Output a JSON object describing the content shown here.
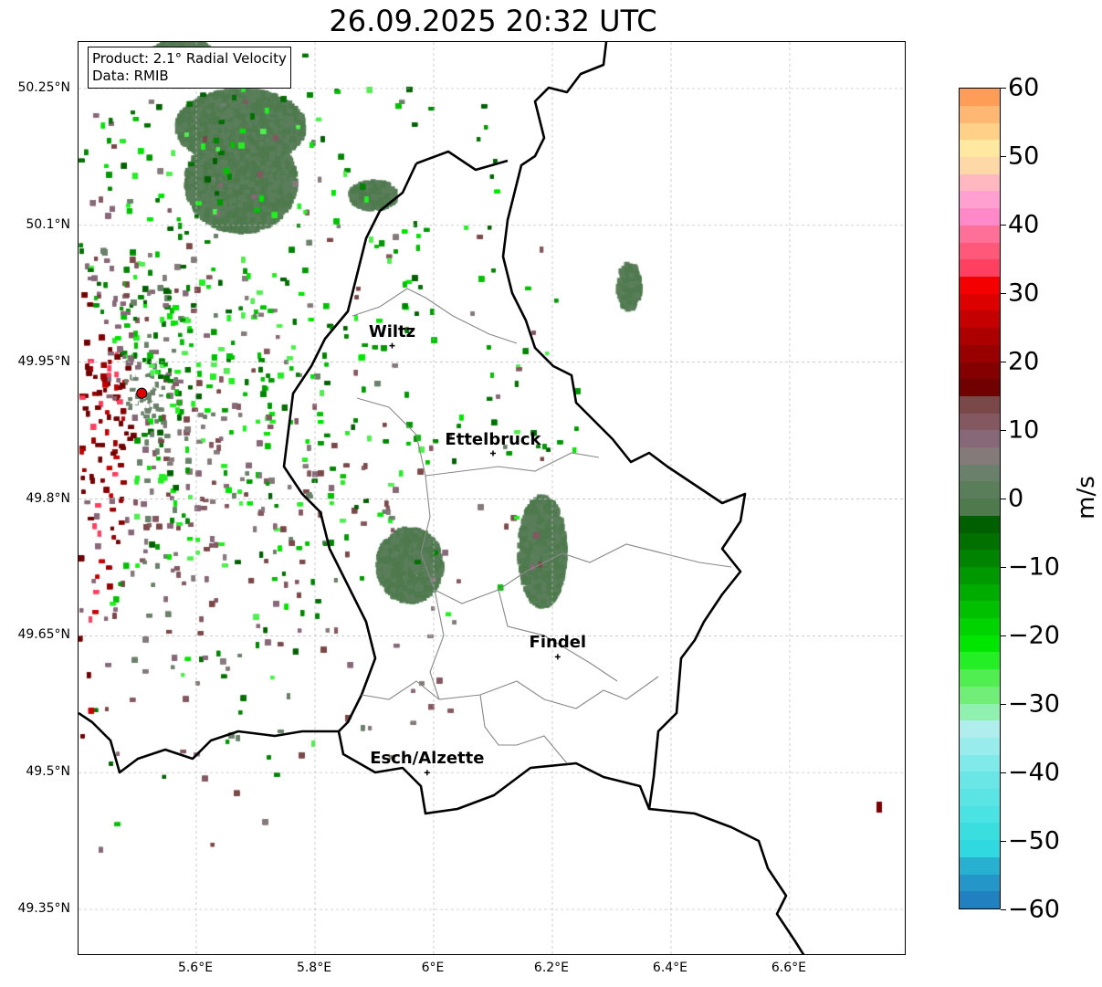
{
  "title": "26.09.2025 20:32 UTC",
  "legend": {
    "product": "Product: 2.1° Radial Velocity",
    "source": "Data: RMIB"
  },
  "map": {
    "lon_range": [
      5.4015,
      6.797
    ],
    "lat_range": [
      49.299,
      50.301
    ],
    "lat_ticks": [
      {
        "v": 50.25,
        "label": "50.25°N"
      },
      {
        "v": 50.1,
        "label": "50.1°N"
      },
      {
        "v": 49.95,
        "label": "49.95°N"
      },
      {
        "v": 49.8,
        "label": "49.8°N"
      },
      {
        "v": 49.65,
        "label": "49.65°N"
      },
      {
        "v": 49.5,
        "label": "49.5°N"
      },
      {
        "v": 49.35,
        "label": "49.35°N"
      }
    ],
    "lon_ticks": [
      {
        "v": 5.6,
        "label": "5.6°E"
      },
      {
        "v": 5.8,
        "label": "5.8°E"
      },
      {
        "v": 6.0,
        "label": "6°E"
      },
      {
        "v": 6.2,
        "label": "6.2°E"
      },
      {
        "v": 6.4,
        "label": "6.4°E"
      },
      {
        "v": 6.6,
        "label": "6.6°E"
      }
    ],
    "cities": [
      {
        "name": "Wiltz",
        "lon": 5.93,
        "lat": 49.968
      },
      {
        "name": "Ettelbruck",
        "lon": 6.1,
        "lat": 49.85
      },
      {
        "name": "Findel",
        "lon": 6.209,
        "lat": 49.627
      },
      {
        "name": "Esch/Alzette",
        "lon": 5.989,
        "lat": 49.5
      }
    ],
    "radar_site": {
      "lon": 5.508,
      "lat": 49.916,
      "color": "#e00000"
    }
  },
  "colorbar": {
    "label": "m/s",
    "min": -60,
    "max": 60,
    "ticks": [
      {
        "v": 60,
        "label": "60"
      },
      {
        "v": 50,
        "label": "50"
      },
      {
        "v": 40,
        "label": "40"
      },
      {
        "v": 30,
        "label": "30"
      },
      {
        "v": 20,
        "label": "20"
      },
      {
        "v": 10,
        "label": "10"
      },
      {
        "v": 0,
        "label": "0"
      },
      {
        "v": -10,
        "label": "−10"
      },
      {
        "v": -20,
        "label": "−20"
      },
      {
        "v": -30,
        "label": "−30"
      },
      {
        "v": -40,
        "label": "−40"
      },
      {
        "v": -50,
        "label": "−50"
      },
      {
        "v": -60,
        "label": "−60"
      }
    ],
    "colors": [
      "#2080c0",
      "#2596c8",
      "#27b0d0",
      "#30d8e0",
      "#3adede",
      "#4ae2e2",
      "#5ae4e4",
      "#6ae6e6",
      "#80eaea",
      "#98ecec",
      "#b0eeee",
      "#90f0b0",
      "#70ee78",
      "#50ee50",
      "#24ee24",
      "#00e600",
      "#00d400",
      "#00c000",
      "#00ac00",
      "#009800",
      "#008400",
      "#007000",
      "#006000",
      "#4e7a4e",
      "#5a7e5a",
      "#6a806a",
      "#847a7a",
      "#866878",
      "#845860",
      "#7a4848",
      "#700000",
      "#840000",
      "#980000",
      "#ac0000",
      "#c40000",
      "#dc0000",
      "#f40000",
      "#ff4060",
      "#ff5878",
      "#ff7098",
      "#ff88c8",
      "#ffa0d0",
      "#ffb8c0",
      "#ffd8a8",
      "#ffe8a0",
      "#ffd088",
      "#ffb874",
      "#ff9c58"
    ]
  }
}
